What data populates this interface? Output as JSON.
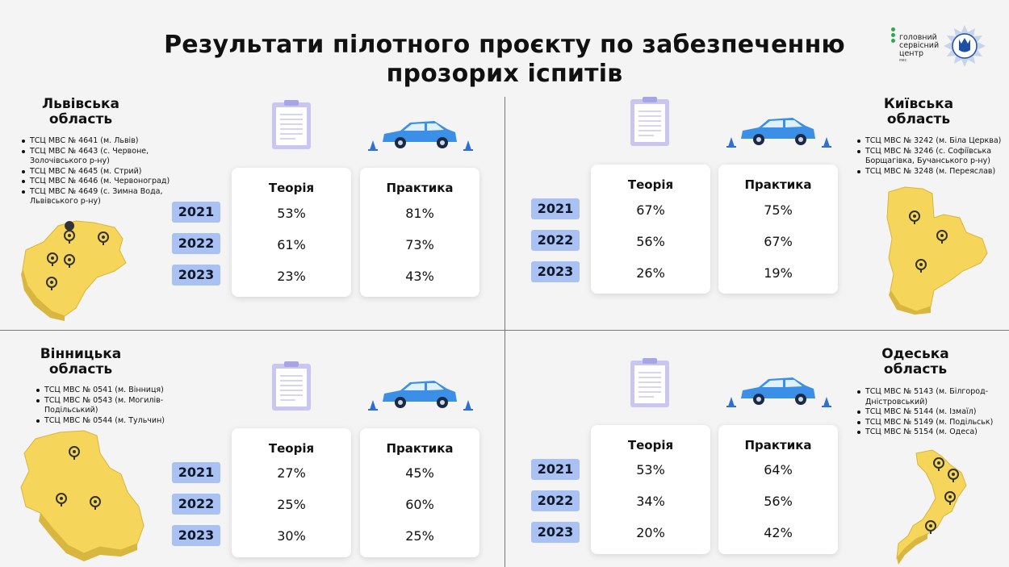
{
  "title": {
    "line1": "Результати пілотного проєкту по забезпеченню",
    "line2": "прозорих іспитів"
  },
  "logo": {
    "line1": "головний",
    "line2": "сервісний",
    "line3": "центр",
    "sub": "мвс"
  },
  "headers": {
    "theory": "Теорія",
    "practice": "Практика"
  },
  "colors": {
    "map": "#f6d65a",
    "year_badge": "#a9c1f3",
    "car": "#3b8fe6",
    "cone": "#2f6fd4",
    "clipboard": "#c9c7f2"
  },
  "regions": [
    {
      "name_line1": "Львівська",
      "name_line2": "область",
      "centers": [
        "ТСЦ МВС № 4641 (м. Львів)",
        "ТСЦ МВС № 4643 (с. Червоне,\nЗолочівського р-ну)",
        "ТСЦ МВС № 4645 (м. Стрий)",
        "ТСЦ МВС № 4646 (м. Червоноград)",
        "ТСЦ МВС № 4649 (с. Зимна Вода,\nЛьвівського р-ну)"
      ],
      "rows": [
        {
          "year": "2021",
          "theory": "53%",
          "practice": "81%"
        },
        {
          "year": "2022",
          "theory": "61%",
          "practice": "73%"
        },
        {
          "year": "2023",
          "theory": "23%",
          "practice": "43%"
        }
      ]
    },
    {
      "name_line1": "Київська",
      "name_line2": "область",
      "centers": [
        "ТСЦ МВС № 3242 (м. Біла Церква)",
        "ТСЦ МВС № 3246 (с. Софіївська\nБорщагівка, Бучанського р-ну)",
        "ТСЦ МВС № 3248 (м. Переяслав)"
      ],
      "rows": [
        {
          "year": "2021",
          "theory": "67%",
          "practice": "75%"
        },
        {
          "year": "2022",
          "theory": "56%",
          "practice": "67%"
        },
        {
          "year": "2023",
          "theory": "26%",
          "practice": "19%"
        }
      ]
    },
    {
      "name_line1": "Вінницька",
      "name_line2": "область",
      "centers": [
        "ТСЦ МВС № 0541 (м. Вінниця)",
        "ТСЦ МВС № 0543 (м. Могилів-\nПодільський)",
        "ТСЦ МВС № 0544 (м. Тульчин)"
      ],
      "rows": [
        {
          "year": "2021",
          "theory": "27%",
          "practice": "45%"
        },
        {
          "year": "2022",
          "theory": "25%",
          "practice": "60%"
        },
        {
          "year": "2023",
          "theory": "30%",
          "practice": "25%"
        }
      ]
    },
    {
      "name_line1": "Одеська",
      "name_line2": "область",
      "centers": [
        "ТСЦ МВС № 5143 (м. Білгород-\nДністровський)",
        "ТСЦ МВС № 5144 (м. Ізмаїл)",
        "ТСЦ МВС № 5149 (м. Подільськ)",
        "ТСЦ МВС № 5154 (м. Одеса)"
      ],
      "rows": [
        {
          "year": "2021",
          "theory": "53%",
          "practice": "64%"
        },
        {
          "year": "2022",
          "theory": "34%",
          "practice": "56%"
        },
        {
          "year": "2023",
          "theory": "20%",
          "practice": "42%"
        }
      ]
    }
  ]
}
